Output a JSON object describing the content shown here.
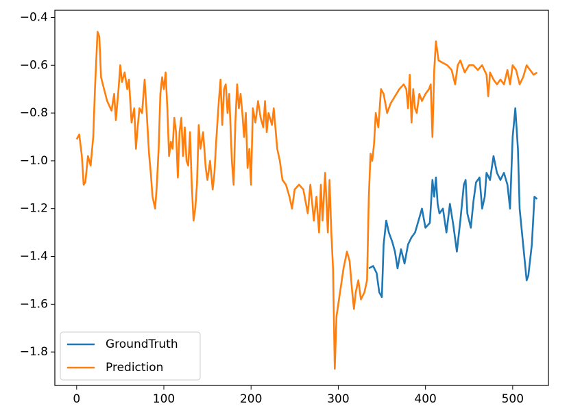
{
  "chart_data": {
    "type": "line",
    "xlim": [
      -25,
      541
    ],
    "xticks": [
      0,
      100,
      200,
      300,
      400,
      500
    ],
    "ylim": [
      -1.94,
      -0.37
    ],
    "yticks": [
      {
        "value": -0.4,
        "label": "−0.4"
      },
      {
        "value": -0.6,
        "label": "−0.6"
      },
      {
        "value": -0.8,
        "label": "−0.8"
      },
      {
        "value": -1.0,
        "label": "−1.0"
      },
      {
        "value": -1.2,
        "label": "−1.2"
      },
      {
        "value": -1.4,
        "label": "−1.4"
      },
      {
        "value": -1.6,
        "label": "−1.6"
      },
      {
        "value": -1.8,
        "label": "−1.8"
      }
    ],
    "grid": false,
    "legend": "lower left",
    "series": [
      {
        "name": "GroundTruth",
        "color": "#1f77b4",
        "x": [
          335,
          340,
          344,
          347,
          350,
          352,
          355,
          358,
          362,
          365,
          368,
          372,
          376,
          380,
          384,
          388,
          392,
          396,
          400,
          405,
          408,
          410,
          412,
          414,
          416,
          420,
          424,
          428,
          432,
          436,
          440,
          444,
          446,
          448,
          452,
          455,
          458,
          462,
          465,
          468,
          470,
          474,
          478,
          482,
          486,
          490,
          494,
          497,
          500,
          503,
          506,
          508,
          512,
          516,
          518,
          522,
          525,
          528
        ],
        "values": [
          -1.45,
          -1.44,
          -1.47,
          -1.55,
          -1.57,
          -1.35,
          -1.25,
          -1.3,
          -1.34,
          -1.38,
          -1.45,
          -1.37,
          -1.43,
          -1.35,
          -1.32,
          -1.3,
          -1.25,
          -1.2,
          -1.28,
          -1.26,
          -1.08,
          -1.15,
          -1.07,
          -1.18,
          -1.22,
          -1.2,
          -1.3,
          -1.18,
          -1.27,
          -1.38,
          -1.25,
          -1.1,
          -1.08,
          -1.22,
          -1.28,
          -1.17,
          -1.09,
          -1.07,
          -1.2,
          -1.15,
          -1.05,
          -1.08,
          -0.98,
          -1.05,
          -1.08,
          -1.05,
          -1.1,
          -1.2,
          -0.9,
          -0.78,
          -0.95,
          -1.2,
          -1.35,
          -1.5,
          -1.48,
          -1.35,
          -1.15,
          -1.16
        ]
      },
      {
        "name": "Prediction",
        "color": "#ff7f0e",
        "x": [
          0,
          3,
          6,
          8,
          10,
          13,
          16,
          19,
          21,
          24,
          26,
          28,
          30,
          35,
          40,
          43,
          45,
          48,
          50,
          52,
          55,
          58,
          60,
          63,
          66,
          68,
          70,
          72,
          75,
          78,
          80,
          83,
          85,
          87,
          90,
          92,
          94,
          96,
          98,
          100,
          102,
          104,
          106,
          108,
          110,
          112,
          114,
          116,
          118,
          120,
          122,
          124,
          126,
          128,
          130,
          132,
          134,
          136,
          138,
          140,
          142,
          145,
          148,
          150,
          153,
          156,
          158,
          160,
          163,
          165,
          167,
          169,
          171,
          173,
          175,
          178,
          180,
          182,
          184,
          186,
          188,
          190,
          192,
          194,
          196,
          198,
          200,
          202,
          205,
          208,
          211,
          214,
          216,
          218,
          220,
          224,
          226,
          230,
          233,
          236,
          240,
          244,
          247,
          250,
          255,
          260,
          265,
          268,
          272,
          275,
          278,
          280,
          282,
          285,
          288,
          290,
          292,
          294,
          296,
          298,
          302,
          306,
          310,
          313,
          316,
          318,
          320,
          323,
          326,
          330,
          333,
          335,
          337,
          339,
          341,
          343,
          346,
          349,
          352,
          356,
          360,
          365,
          370,
          375,
          378,
          380,
          382,
          384,
          386,
          388,
          390,
          393,
          396,
          400,
          404,
          406,
          408,
          410,
          412,
          415,
          420,
          425,
          430,
          434,
          437,
          440,
          445,
          450,
          455,
          460,
          465,
          470,
          472,
          474,
          478,
          482,
          486,
          490,
          494,
          497,
          500,
          504,
          508,
          512,
          516,
          520,
          524,
          528
        ],
        "values": [
          -0.91,
          -0.89,
          -0.98,
          -1.1,
          -1.09,
          -0.98,
          -1.02,
          -0.9,
          -0.7,
          -0.46,
          -0.48,
          -0.65,
          -0.68,
          -0.75,
          -0.79,
          -0.72,
          -0.83,
          -0.7,
          -0.6,
          -0.67,
          -0.63,
          -0.7,
          -0.66,
          -0.84,
          -0.78,
          -0.95,
          -0.86,
          -0.78,
          -0.8,
          -0.66,
          -0.78,
          -0.97,
          -1.05,
          -1.15,
          -1.2,
          -1.1,
          -0.95,
          -0.72,
          -0.65,
          -0.7,
          -0.63,
          -0.78,
          -0.98,
          -0.92,
          -0.95,
          -0.82,
          -0.88,
          -1.07,
          -0.88,
          -0.82,
          -0.98,
          -0.86,
          -1.0,
          -1.02,
          -0.88,
          -1.1,
          -1.25,
          -1.2,
          -1.1,
          -0.85,
          -0.95,
          -0.88,
          -1.03,
          -1.08,
          -1.0,
          -1.12,
          -1.05,
          -0.92,
          -0.75,
          -0.66,
          -0.85,
          -0.7,
          -0.68,
          -0.8,
          -0.72,
          -1.0,
          -1.1,
          -0.84,
          -0.68,
          -0.78,
          -0.72,
          -0.8,
          -0.9,
          -0.8,
          -1.03,
          -0.95,
          -1.1,
          -0.78,
          -0.84,
          -0.75,
          -0.82,
          -0.86,
          -0.75,
          -0.88,
          -0.8,
          -0.85,
          -0.78,
          -0.95,
          -1.0,
          -1.08,
          -1.1,
          -1.15,
          -1.2,
          -1.12,
          -1.1,
          -1.12,
          -1.22,
          -1.1,
          -1.25,
          -1.15,
          -1.3,
          -1.1,
          -1.25,
          -1.05,
          -1.3,
          -1.08,
          -1.3,
          -1.45,
          -1.87,
          -1.65,
          -1.55,
          -1.45,
          -1.38,
          -1.42,
          -1.55,
          -1.62,
          -1.55,
          -1.5,
          -1.58,
          -1.55,
          -1.5,
          -1.15,
          -0.97,
          -1.0,
          -0.93,
          -0.8,
          -0.86,
          -0.7,
          -0.72,
          -0.8,
          -0.76,
          -0.73,
          -0.7,
          -0.68,
          -0.7,
          -0.78,
          -0.64,
          -0.84,
          -0.7,
          -0.78,
          -0.8,
          -0.72,
          -0.75,
          -0.72,
          -0.7,
          -0.68,
          -0.9,
          -0.62,
          -0.5,
          -0.58,
          -0.59,
          -0.6,
          -0.62,
          -0.68,
          -0.6,
          -0.58,
          -0.63,
          -0.6,
          -0.6,
          -0.62,
          -0.6,
          -0.64,
          -0.73,
          -0.63,
          -0.66,
          -0.68,
          -0.66,
          -0.68,
          -0.62,
          -0.68,
          -0.6,
          -0.62,
          -0.68,
          -0.65,
          -0.6,
          -0.62,
          -0.64,
          -0.63
        ]
      }
    ]
  }
}
